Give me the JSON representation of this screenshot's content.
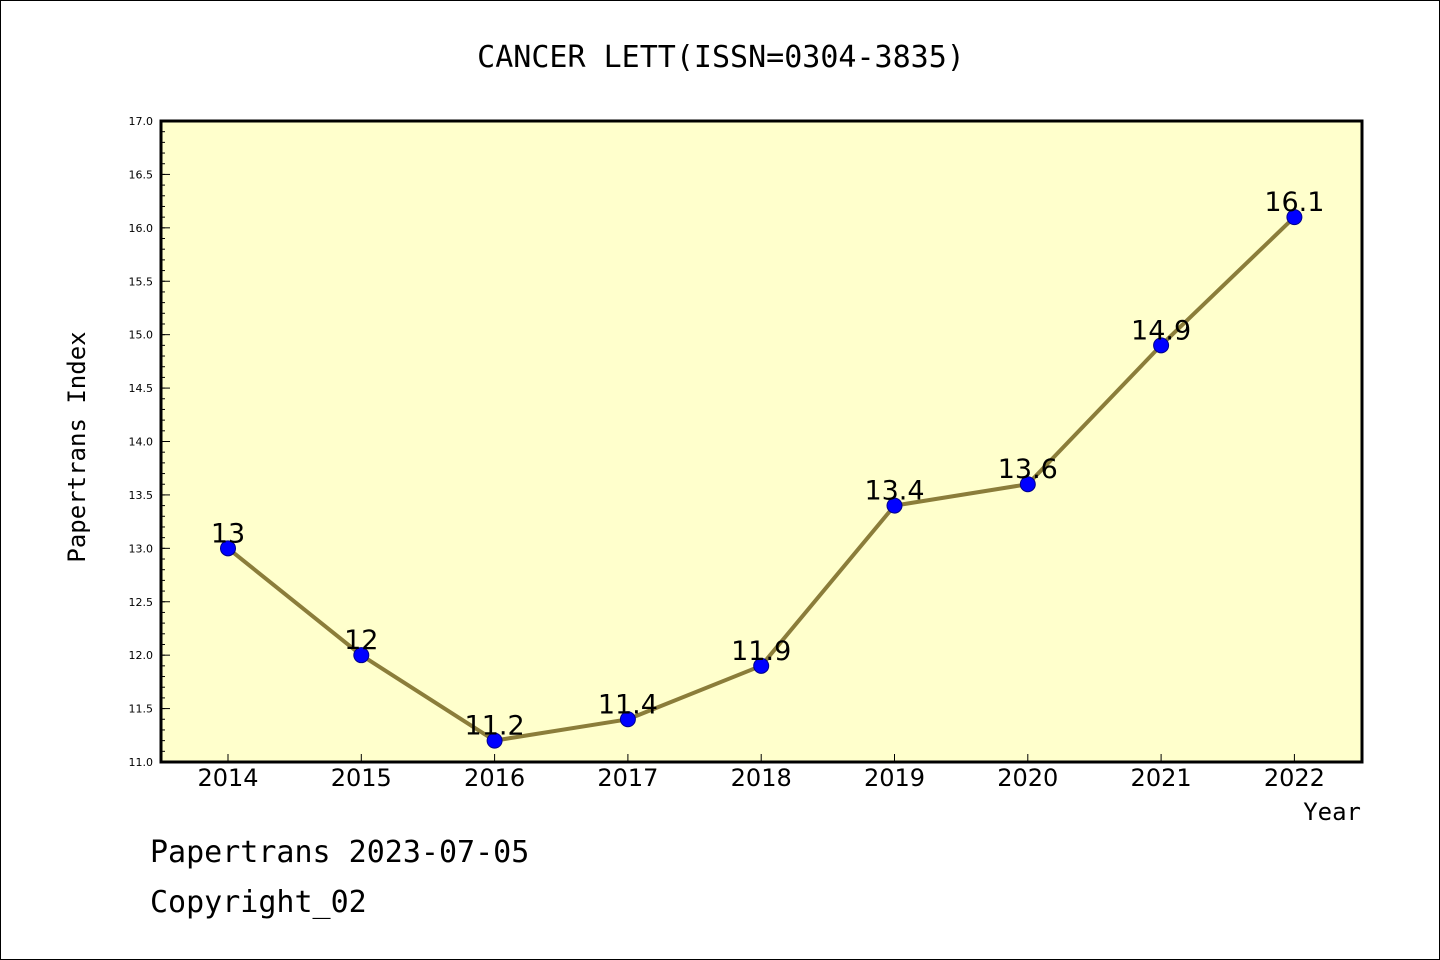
{
  "colors": {
    "plot_background": "#ffffcc",
    "line": "#8b7d3a",
    "marker": "#0000ff",
    "marker_edge": "#00008b",
    "axis": "#000000"
  },
  "footer": {
    "date_line": "Papertrans 2023-07-05",
    "copyright_line": "Copyright_02"
  },
  "chart_data": {
    "type": "line",
    "title": "CANCER LETT(ISSN=0304-3835)",
    "xlabel": "Year",
    "ylabel": "Papertrans Index",
    "categories": [
      "2014",
      "2015",
      "2016",
      "2017",
      "2018",
      "2019",
      "2020",
      "2021",
      "2022"
    ],
    "values": [
      13,
      12,
      11.2,
      11.4,
      11.9,
      13.4,
      13.6,
      14.9,
      16.1
    ],
    "data_labels": [
      "13",
      "12",
      "11.2",
      "11.4",
      "11.9",
      "13.4",
      "13.6",
      "14.9",
      "16.1"
    ],
    "ylim": [
      11.0,
      17.0
    ],
    "yticks": [
      "11.0",
      "11.5",
      "12.0",
      "12.5",
      "13.0",
      "13.5",
      "14.0",
      "14.5",
      "15.0",
      "15.5",
      "16.0",
      "16.5",
      "17.0"
    ],
    "grid": false,
    "legend": "none"
  }
}
